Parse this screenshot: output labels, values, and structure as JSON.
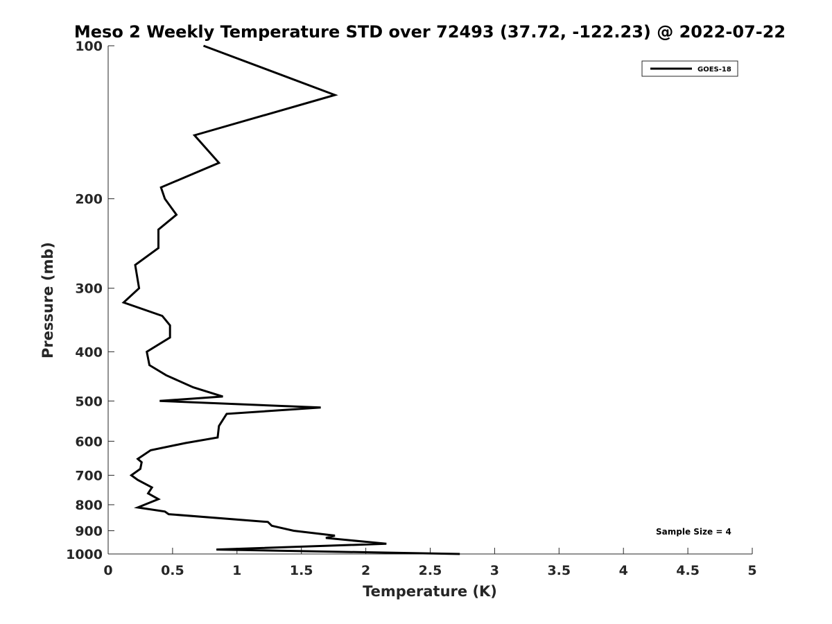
{
  "chart_data": {
    "type": "line",
    "title": "Meso 2 Weekly Temperature STD over 72493 (37.72, -122.23) @ 2022-07-22",
    "xlabel": "Temperature (K)",
    "ylabel": "Pressure (mb)",
    "xlim": [
      0,
      5
    ],
    "ylim": [
      100,
      1000
    ],
    "y_scale": "log",
    "y_reversed": true,
    "grid": false,
    "legend_position": "top-right",
    "x_ticks": [
      0,
      0.5,
      1,
      1.5,
      2,
      2.5,
      3,
      3.5,
      4,
      4.5,
      5
    ],
    "x_tick_labels": [
      "0",
      "0.5",
      "1",
      "1.5",
      "2",
      "2.5",
      "3",
      "3.5",
      "4",
      "4.5",
      "5"
    ],
    "y_ticks": [
      100,
      200,
      300,
      400,
      500,
      600,
      700,
      800,
      900,
      1000
    ],
    "y_tick_labels": [
      "100",
      "200",
      "300",
      "400",
      "500",
      "600",
      "700",
      "800",
      "900",
      "1000"
    ],
    "series": [
      {
        "name": "GOES-18",
        "color": "#000000",
        "points": [
          [
            0.74,
            100
          ],
          [
            1.76,
            125
          ],
          [
            0.67,
            150
          ],
          [
            0.86,
            170
          ],
          [
            0.41,
            190
          ],
          [
            0.44,
            200
          ],
          [
            0.53,
            215
          ],
          [
            0.39,
            230
          ],
          [
            0.39,
            250
          ],
          [
            0.21,
            270
          ],
          [
            0.24,
            300
          ],
          [
            0.12,
            320
          ],
          [
            0.42,
            340
          ],
          [
            0.48,
            355
          ],
          [
            0.48,
            375
          ],
          [
            0.3,
            400
          ],
          [
            0.32,
            425
          ],
          [
            0.45,
            445
          ],
          [
            0.66,
            470
          ],
          [
            0.89,
            490
          ],
          [
            0.4,
            500
          ],
          [
            1.65,
            515
          ],
          [
            0.92,
            530
          ],
          [
            0.86,
            560
          ],
          [
            0.85,
            590
          ],
          [
            0.6,
            605
          ],
          [
            0.33,
            625
          ],
          [
            0.23,
            650
          ],
          [
            0.26,
            660
          ],
          [
            0.25,
            680
          ],
          [
            0.18,
            700
          ],
          [
            0.23,
            715
          ],
          [
            0.34,
            740
          ],
          [
            0.31,
            760
          ],
          [
            0.39,
            780
          ],
          [
            0.23,
            810
          ],
          [
            0.44,
            825
          ],
          [
            0.47,
            835
          ],
          [
            1.24,
            865
          ],
          [
            1.27,
            880
          ],
          [
            1.44,
            900
          ],
          [
            1.76,
            920
          ],
          [
            1.69,
            930
          ],
          [
            2.16,
            955
          ],
          [
            0.84,
            980
          ],
          [
            2.73,
            1000
          ]
        ]
      }
    ],
    "annotations": [
      "Sample Size = 4"
    ]
  }
}
